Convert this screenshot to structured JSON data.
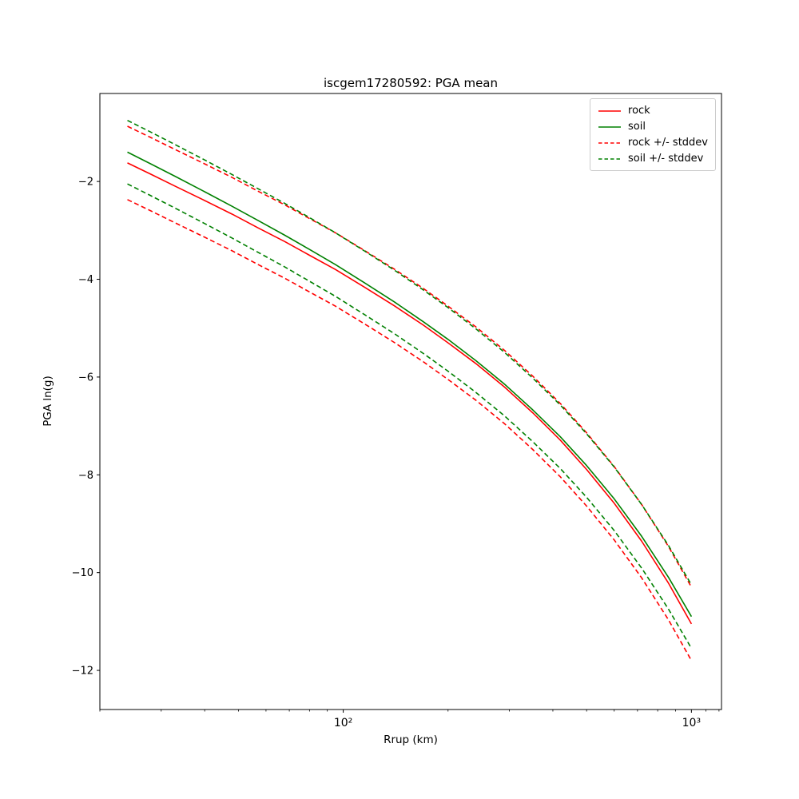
{
  "figure": {
    "title": "iscgem17280592: PGA mean",
    "xlabel": "Rrup (km)",
    "ylabel": "PGA ln(g)"
  },
  "chart_data": {
    "type": "line",
    "title": "iscgem17280592: PGA mean",
    "xlabel": "Rrup (km)",
    "ylabel": "PGA ln(g)",
    "x_scale": "log",
    "grid": false,
    "legend_position": "upper right",
    "xlim": [
      20,
      1220
    ],
    "ylim": [
      -12.8,
      -0.2
    ],
    "x_major_ticks": [
      {
        "value": 100,
        "label": "10²"
      },
      {
        "value": 1000,
        "label": "10³"
      }
    ],
    "x_minor_ticks": [
      20,
      30,
      40,
      50,
      60,
      70,
      80,
      90,
      200,
      300,
      400,
      500,
      600,
      700,
      800,
      900,
      1100,
      1200
    ],
    "y_ticks": [
      {
        "value": -2,
        "label": "−2"
      },
      {
        "value": -4,
        "label": "−4"
      },
      {
        "value": -6,
        "label": "−6"
      },
      {
        "value": -8,
        "label": "−8"
      },
      {
        "value": -10,
        "label": "−10"
      },
      {
        "value": -12,
        "label": "−12"
      }
    ],
    "stddev": {
      "rock": 0.75,
      "soil": 0.65
    },
    "x": [
      24,
      28,
      33,
      40,
      48,
      57,
      68,
      80,
      95,
      115,
      140,
      170,
      200,
      240,
      290,
      350,
      420,
      500,
      600,
      720,
      860,
      1000
    ],
    "series": [
      {
        "name": "rock",
        "color": "#ff0000",
        "style": "solid",
        "values": [
          -1.62,
          -1.85,
          -2.1,
          -2.39,
          -2.67,
          -2.95,
          -3.23,
          -3.51,
          -3.8,
          -4.16,
          -4.54,
          -4.94,
          -5.3,
          -5.72,
          -6.2,
          -6.73,
          -7.29,
          -7.89,
          -8.58,
          -9.36,
          -10.22,
          -11.05
        ]
      },
      {
        "name": "soil",
        "color": "#008000",
        "style": "solid",
        "values": [
          -1.4,
          -1.64,
          -1.9,
          -2.21,
          -2.51,
          -2.8,
          -3.1,
          -3.39,
          -3.7,
          -4.07,
          -4.46,
          -4.87,
          -5.23,
          -5.66,
          -6.14,
          -6.67,
          -7.22,
          -7.81,
          -8.49,
          -9.26,
          -10.1,
          -10.9
        ]
      },
      {
        "name": "rock plus stddev",
        "color": "#ff0000",
        "style": "dashed",
        "values": [
          -0.87,
          -1.1,
          -1.35,
          -1.64,
          -1.92,
          -2.2,
          -2.48,
          -2.76,
          -3.05,
          -3.41,
          -3.79,
          -4.19,
          -4.55,
          -4.97,
          -5.45,
          -5.98,
          -6.54,
          -7.14,
          -7.83,
          -8.61,
          -9.47,
          -10.3
        ]
      },
      {
        "name": "rock minus stddev",
        "color": "#ff0000",
        "style": "dashed",
        "values": [
          -2.37,
          -2.6,
          -2.85,
          -3.14,
          -3.42,
          -3.7,
          -3.98,
          -4.26,
          -4.55,
          -4.91,
          -5.29,
          -5.69,
          -6.05,
          -6.47,
          -6.95,
          -7.48,
          -8.04,
          -8.64,
          -9.33,
          -10.11,
          -10.97,
          -11.8
        ]
      },
      {
        "name": "soil plus stddev",
        "color": "#008000",
        "style": "dashed",
        "values": [
          -0.75,
          -0.99,
          -1.25,
          -1.56,
          -1.86,
          -2.15,
          -2.45,
          -2.74,
          -3.05,
          -3.42,
          -3.81,
          -4.22,
          -4.58,
          -5.01,
          -5.49,
          -6.02,
          -6.57,
          -7.16,
          -7.84,
          -8.61,
          -9.45,
          -10.25
        ]
      },
      {
        "name": "soil minus stddev",
        "color": "#008000",
        "style": "dashed",
        "values": [
          -2.05,
          -2.29,
          -2.55,
          -2.86,
          -3.16,
          -3.45,
          -3.75,
          -4.04,
          -4.35,
          -4.72,
          -5.11,
          -5.52,
          -5.88,
          -6.31,
          -6.79,
          -7.32,
          -7.87,
          -8.46,
          -9.14,
          -9.91,
          -10.75,
          -11.55
        ]
      }
    ],
    "legend_entries": [
      {
        "label": "rock",
        "color": "#ff0000",
        "style": "solid"
      },
      {
        "label": "soil",
        "color": "#008000",
        "style": "solid"
      },
      {
        "label": "rock +/- stddev",
        "color": "#ff0000",
        "style": "dashed"
      },
      {
        "label": "soil +/- stddev",
        "color": "#008000",
        "style": "dashed"
      }
    ]
  }
}
